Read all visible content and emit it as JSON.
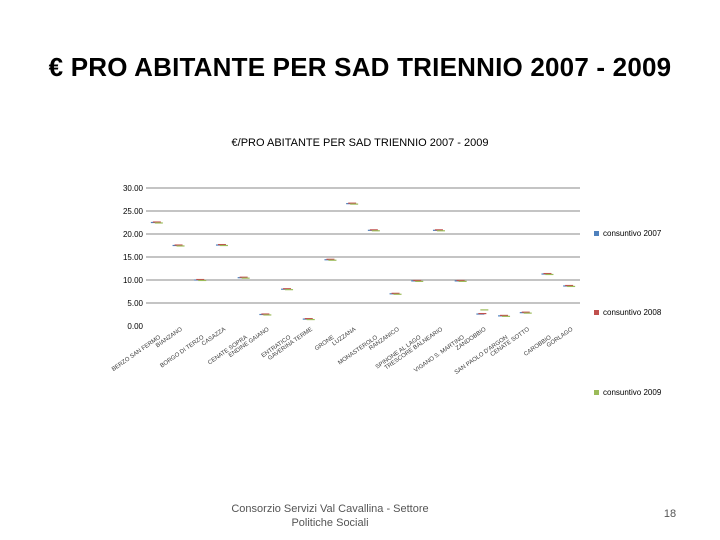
{
  "slide": {
    "title": "€ PRO ABITANTE PER SAD TRIENNIO 2007 - 2009",
    "footer": [
      "Consorzio Servizi Val Cavallina - Settore",
      "Politiche Sociali"
    ],
    "page_number": "18"
  },
  "chart_data": {
    "type": "line",
    "title": "€/PRO ABITANTE PER SAD TRIENNIO 2007 - 2009",
    "xlabel": "",
    "ylabel": "",
    "ylim": [
      0,
      30
    ],
    "yticks": [
      "0.00",
      "5.00",
      "10.00",
      "15.00",
      "20.00",
      "25.00",
      "30.00"
    ],
    "categories": [
      "BERZO SAN FERMO",
      "BIANZANO",
      "BORGO DI TERZO",
      "CASAZZA",
      "CENATE SOPRA",
      "ENDINE GAIANO",
      "ENTRATICO",
      "GAVERINA TERME",
      "GRONE",
      "LUZZANA",
      "MONASTEROLO",
      "RANZANICO",
      "SPINONE AL LAGO",
      "TRESCORE BALNEARIO",
      "VIGANO S. MARTINO",
      "ZANDOBBIO",
      "SAN PAOLO D'ARGON",
      "CENATE SOTTO",
      "CAROBBIO",
      "GORLAGO"
    ],
    "series": [
      {
        "name": "consuntivo 2007",
        "color": "#4f81bd",
        "values": [
          22.5,
          17.5,
          10.0,
          17.6,
          10.5,
          2.5,
          8.0,
          1.5,
          14.4,
          26.6,
          20.8,
          7.0,
          9.8,
          20.8,
          9.8,
          2.6,
          2.2,
          2.9,
          11.3,
          8.7
        ]
      },
      {
        "name": "consuntivo 2008",
        "color": "#c0504d",
        "values": [
          22.6,
          17.6,
          10.1,
          17.7,
          10.6,
          2.6,
          8.1,
          1.6,
          14.5,
          26.7,
          20.9,
          7.1,
          9.9,
          20.9,
          9.9,
          2.7,
          2.3,
          3.0,
          11.4,
          8.8
        ]
      },
      {
        "name": "consuntivo 2009",
        "color": "#9bbb59",
        "values": [
          22.4,
          17.4,
          9.9,
          17.5,
          10.4,
          2.4,
          7.9,
          1.4,
          14.3,
          26.5,
          20.7,
          6.9,
          9.7,
          20.7,
          9.7,
          3.5,
          2.1,
          2.8,
          11.2,
          8.6
        ]
      }
    ],
    "grid": true,
    "legend": "right"
  }
}
